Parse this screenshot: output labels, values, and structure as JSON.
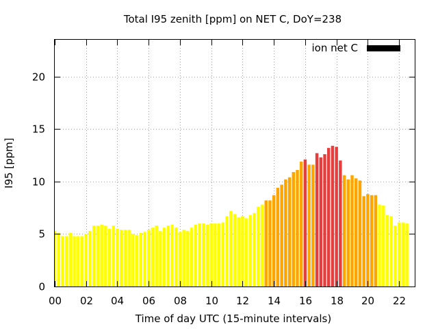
{
  "chart_data": {
    "type": "bar",
    "title": "Total I95 zenith [ppm] on NET C, DoY=238",
    "xlabel": "Time of day UTC (15-minute intervals)",
    "ylabel": "I95 [ppm]",
    "xlim": [
      0,
      23
    ],
    "ylim": [
      0,
      23.5
    ],
    "grid": true,
    "legend_position": "top-right",
    "x_ticks": [
      "00",
      "02",
      "04",
      "06",
      "08",
      "10",
      "12",
      "14",
      "16",
      "18",
      "20",
      "22"
    ],
    "y_ticks": [
      "0",
      "5",
      "10",
      "15",
      "20"
    ],
    "series": [
      {
        "name": "ion net C",
        "legend_color": "#000000",
        "level_colors": {
          "low": "#ffff00",
          "medium": "#ffa500",
          "high": "#e53e3e"
        },
        "x": [
          0.0,
          0.25,
          0.5,
          0.75,
          1.0,
          1.25,
          1.5,
          1.75,
          2.0,
          2.25,
          2.5,
          2.75,
          3.0,
          3.25,
          3.5,
          3.75,
          4.0,
          4.25,
          4.5,
          4.75,
          5.0,
          5.25,
          5.5,
          5.75,
          6.0,
          6.25,
          6.5,
          6.75,
          7.0,
          7.25,
          7.5,
          7.75,
          8.0,
          8.25,
          8.5,
          8.75,
          9.0,
          9.25,
          9.5,
          9.75,
          10.0,
          10.25,
          10.5,
          10.75,
          11.0,
          11.25,
          11.5,
          11.75,
          12.0,
          12.25,
          12.5,
          12.75,
          13.0,
          13.25,
          13.5,
          13.75,
          14.0,
          14.25,
          14.5,
          14.75,
          15.0,
          15.25,
          15.5,
          15.75,
          16.0,
          16.25,
          16.5,
          16.75,
          17.0,
          17.25,
          17.5,
          17.75,
          18.0,
          18.25,
          18.5,
          18.75,
          19.0,
          19.25,
          19.5,
          19.75,
          20.0,
          20.25,
          20.5,
          20.75,
          21.0,
          21.25,
          21.5,
          21.75,
          22.0,
          22.25,
          22.5
        ],
        "values": [
          5.3,
          5.1,
          4.8,
          4.8,
          5.1,
          4.8,
          4.8,
          4.8,
          5.0,
          5.3,
          5.8,
          5.8,
          5.9,
          5.8,
          5.5,
          5.8,
          5.5,
          5.4,
          5.4,
          5.4,
          5.0,
          4.9,
          5.1,
          5.2,
          5.4,
          5.6,
          5.8,
          5.3,
          5.6,
          5.8,
          5.9,
          5.6,
          5.2,
          5.4,
          5.3,
          5.6,
          5.9,
          6.0,
          6.0,
          5.9,
          6.0,
          6.0,
          6.0,
          6.1,
          6.7,
          7.2,
          6.9,
          6.6,
          6.7,
          6.5,
          6.8,
          7.0,
          7.6,
          7.8,
          8.2,
          8.2,
          8.7,
          9.4,
          9.7,
          10.2,
          10.4,
          10.9,
          11.1,
          11.9,
          12.1,
          11.6,
          11.6,
          12.7,
          12.3,
          12.6,
          13.2,
          13.4,
          13.3,
          12.0,
          10.6,
          10.2,
          10.6,
          10.3,
          10.1,
          8.6,
          8.8,
          8.7,
          8.7,
          7.8,
          7.7,
          6.8,
          6.7,
          5.8,
          6.1,
          6.1,
          6.0
        ],
        "levels": [
          "low",
          "low",
          "low",
          "low",
          "low",
          "low",
          "low",
          "low",
          "low",
          "low",
          "low",
          "low",
          "low",
          "low",
          "low",
          "low",
          "low",
          "low",
          "low",
          "low",
          "low",
          "low",
          "low",
          "low",
          "low",
          "low",
          "low",
          "low",
          "low",
          "low",
          "low",
          "low",
          "low",
          "low",
          "low",
          "low",
          "low",
          "low",
          "low",
          "low",
          "low",
          "low",
          "low",
          "low",
          "low",
          "low",
          "low",
          "low",
          "low",
          "low",
          "low",
          "low",
          "low",
          "low",
          "medium",
          "medium",
          "medium",
          "medium",
          "medium",
          "medium",
          "medium",
          "medium",
          "medium",
          "medium",
          "high",
          "medium",
          "medium",
          "high",
          "high",
          "high",
          "high",
          "high",
          "high",
          "high",
          "medium",
          "medium",
          "medium",
          "medium",
          "medium",
          "medium",
          "medium",
          "medium",
          "medium",
          "low",
          "low",
          "low",
          "low",
          "low",
          "low",
          "low",
          "low"
        ]
      }
    ]
  }
}
